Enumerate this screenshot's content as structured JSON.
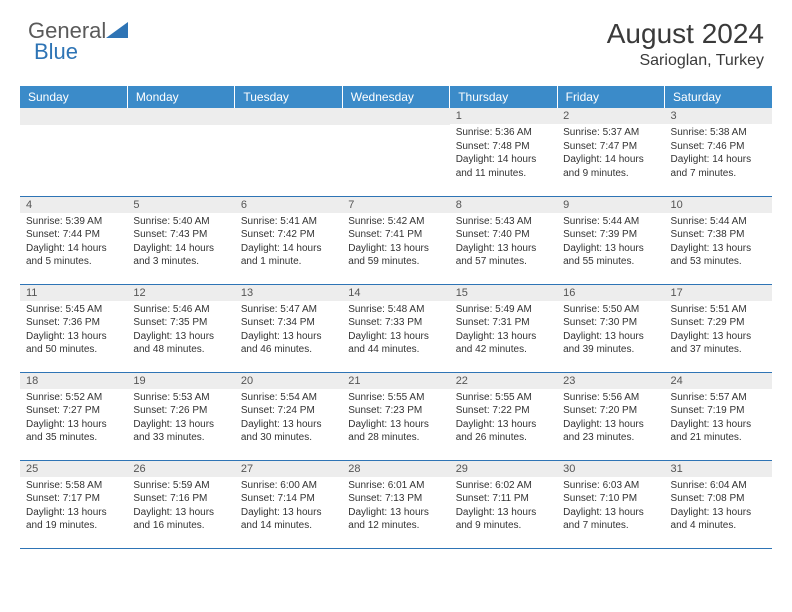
{
  "logo": {
    "text_general": "General",
    "text_blue": "Blue"
  },
  "title": {
    "month": "August 2024",
    "location": "Sarioglan, Turkey"
  },
  "theme": {
    "header_bg": "#3b8bc9",
    "header_text": "#ffffff",
    "daynum_bg": "#ededed",
    "daynum_text": "#555555",
    "cell_border": "#2e74b5",
    "body_text": "#333333",
    "logo_gray": "#5a5a5a",
    "logo_blue": "#2e74b5"
  },
  "weekdays": [
    "Sunday",
    "Monday",
    "Tuesday",
    "Wednesday",
    "Thursday",
    "Friday",
    "Saturday"
  ],
  "weeks": [
    [
      null,
      null,
      null,
      null,
      {
        "num": "1",
        "sunrise": "5:36 AM",
        "sunset": "7:48 PM",
        "daylight": "14 hours and 11 minutes."
      },
      {
        "num": "2",
        "sunrise": "5:37 AM",
        "sunset": "7:47 PM",
        "daylight": "14 hours and 9 minutes."
      },
      {
        "num": "3",
        "sunrise": "5:38 AM",
        "sunset": "7:46 PM",
        "daylight": "14 hours and 7 minutes."
      }
    ],
    [
      {
        "num": "4",
        "sunrise": "5:39 AM",
        "sunset": "7:44 PM",
        "daylight": "14 hours and 5 minutes."
      },
      {
        "num": "5",
        "sunrise": "5:40 AM",
        "sunset": "7:43 PM",
        "daylight": "14 hours and 3 minutes."
      },
      {
        "num": "6",
        "sunrise": "5:41 AM",
        "sunset": "7:42 PM",
        "daylight": "14 hours and 1 minute."
      },
      {
        "num": "7",
        "sunrise": "5:42 AM",
        "sunset": "7:41 PM",
        "daylight": "13 hours and 59 minutes."
      },
      {
        "num": "8",
        "sunrise": "5:43 AM",
        "sunset": "7:40 PM",
        "daylight": "13 hours and 57 minutes."
      },
      {
        "num": "9",
        "sunrise": "5:44 AM",
        "sunset": "7:39 PM",
        "daylight": "13 hours and 55 minutes."
      },
      {
        "num": "10",
        "sunrise": "5:44 AM",
        "sunset": "7:38 PM",
        "daylight": "13 hours and 53 minutes."
      }
    ],
    [
      {
        "num": "11",
        "sunrise": "5:45 AM",
        "sunset": "7:36 PM",
        "daylight": "13 hours and 50 minutes."
      },
      {
        "num": "12",
        "sunrise": "5:46 AM",
        "sunset": "7:35 PM",
        "daylight": "13 hours and 48 minutes."
      },
      {
        "num": "13",
        "sunrise": "5:47 AM",
        "sunset": "7:34 PM",
        "daylight": "13 hours and 46 minutes."
      },
      {
        "num": "14",
        "sunrise": "5:48 AM",
        "sunset": "7:33 PM",
        "daylight": "13 hours and 44 minutes."
      },
      {
        "num": "15",
        "sunrise": "5:49 AM",
        "sunset": "7:31 PM",
        "daylight": "13 hours and 42 minutes."
      },
      {
        "num": "16",
        "sunrise": "5:50 AM",
        "sunset": "7:30 PM",
        "daylight": "13 hours and 39 minutes."
      },
      {
        "num": "17",
        "sunrise": "5:51 AM",
        "sunset": "7:29 PM",
        "daylight": "13 hours and 37 minutes."
      }
    ],
    [
      {
        "num": "18",
        "sunrise": "5:52 AM",
        "sunset": "7:27 PM",
        "daylight": "13 hours and 35 minutes."
      },
      {
        "num": "19",
        "sunrise": "5:53 AM",
        "sunset": "7:26 PM",
        "daylight": "13 hours and 33 minutes."
      },
      {
        "num": "20",
        "sunrise": "5:54 AM",
        "sunset": "7:24 PM",
        "daylight": "13 hours and 30 minutes."
      },
      {
        "num": "21",
        "sunrise": "5:55 AM",
        "sunset": "7:23 PM",
        "daylight": "13 hours and 28 minutes."
      },
      {
        "num": "22",
        "sunrise": "5:55 AM",
        "sunset": "7:22 PM",
        "daylight": "13 hours and 26 minutes."
      },
      {
        "num": "23",
        "sunrise": "5:56 AM",
        "sunset": "7:20 PM",
        "daylight": "13 hours and 23 minutes."
      },
      {
        "num": "24",
        "sunrise": "5:57 AM",
        "sunset": "7:19 PM",
        "daylight": "13 hours and 21 minutes."
      }
    ],
    [
      {
        "num": "25",
        "sunrise": "5:58 AM",
        "sunset": "7:17 PM",
        "daylight": "13 hours and 19 minutes."
      },
      {
        "num": "26",
        "sunrise": "5:59 AM",
        "sunset": "7:16 PM",
        "daylight": "13 hours and 16 minutes."
      },
      {
        "num": "27",
        "sunrise": "6:00 AM",
        "sunset": "7:14 PM",
        "daylight": "13 hours and 14 minutes."
      },
      {
        "num": "28",
        "sunrise": "6:01 AM",
        "sunset": "7:13 PM",
        "daylight": "13 hours and 12 minutes."
      },
      {
        "num": "29",
        "sunrise": "6:02 AM",
        "sunset": "7:11 PM",
        "daylight": "13 hours and 9 minutes."
      },
      {
        "num": "30",
        "sunrise": "6:03 AM",
        "sunset": "7:10 PM",
        "daylight": "13 hours and 7 minutes."
      },
      {
        "num": "31",
        "sunrise": "6:04 AM",
        "sunset": "7:08 PM",
        "daylight": "13 hours and 4 minutes."
      }
    ]
  ],
  "labels": {
    "sunrise": "Sunrise:",
    "sunset": "Sunset:",
    "daylight": "Daylight:"
  }
}
